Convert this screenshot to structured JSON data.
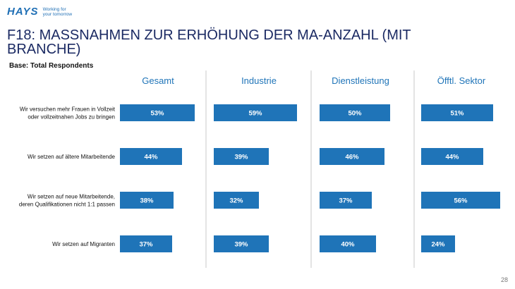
{
  "logo": {
    "word": "HAYS",
    "tagline_1": "Working for",
    "tagline_2": "your tomorrow"
  },
  "header": {
    "title": "F18: MASSNAHMEN ZUR ERHÖHUNG DER MA-ANZAHL (MIT BRANCHE)",
    "subtitle": "Base:  Total Respondents"
  },
  "footer": {
    "page_number": "28"
  },
  "colors": {
    "bar": "#1f74b8",
    "header_text": "#1f74b8",
    "divider": "#c8c8c8",
    "title": "#1b2a63"
  },
  "chart_data": {
    "type": "bar",
    "orientation": "horizontal",
    "title": "F18: MASSNAHMEN ZUR ERHÖHUNG DER MA-ANZAHL (MIT BRANCHE)",
    "subtitle": "Base:  Total Respondents",
    "categories": [
      [
        "Wir versuchen mehr Frauen in Vollzeit",
        "oder vollzeitnahen Jobs zu bringen"
      ],
      [
        "Wir setzen auf ältere Mitarbeitende"
      ],
      [
        "Wir setzen auf neue Mitarbeitende,",
        "deren Qualifikationen nicht 1:1 passen"
      ],
      [
        "Wir setzen auf Migranten"
      ]
    ],
    "series": [
      {
        "name": "Gesamt",
        "values": [
          53,
          44,
          38,
          37
        ],
        "labels": [
          "53%",
          "44%",
          "38%",
          "37%"
        ]
      },
      {
        "name": "Industrie",
        "values": [
          59,
          39,
          32,
          39
        ],
        "labels": [
          "59%",
          "39%",
          "32%",
          "39%"
        ]
      },
      {
        "name": "Dienstleistung",
        "values": [
          50,
          46,
          37,
          40
        ],
        "labels": [
          "50%",
          "46%",
          "37%",
          "40%"
        ]
      },
      {
        "name": "Öfftl. Sektor",
        "values": [
          51,
          44,
          56,
          24
        ],
        "labels": [
          "51%",
          "44%",
          "56%",
          "24%"
        ]
      }
    ],
    "unit": "%",
    "xlim": [
      0,
      100
    ],
    "grid": false,
    "legend": "none"
  }
}
